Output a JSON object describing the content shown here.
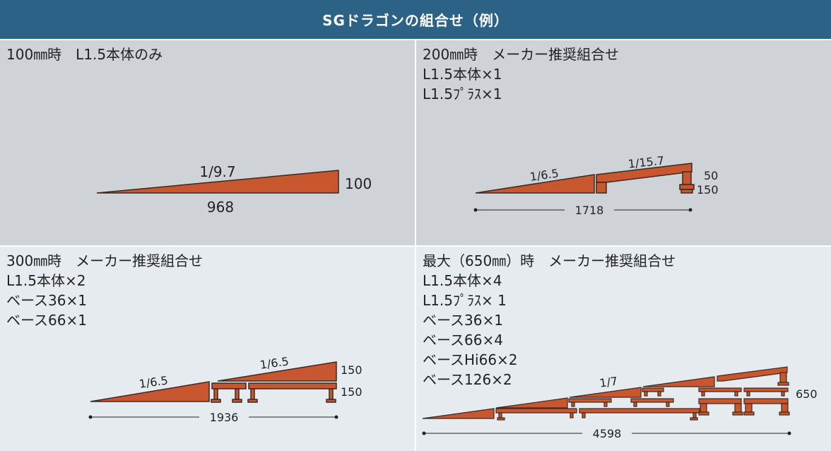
{
  "title": "SGドラゴンの組合せ（例）",
  "colors": {
    "header_bg": "#2d6287",
    "ramp": "#c8562f",
    "panel_dark": "#cfd3d7",
    "panel_light": "#e6ebef"
  },
  "panels": [
    {
      "lines": [
        "100㎜時　L1.5本体のみ"
      ],
      "slope": "1/9.7",
      "length": "968",
      "height": "100"
    },
    {
      "lines": [
        "200㎜時　メーカー推奨組合せ",
        "L1.5本体×1",
        "L1.5ﾌﾟﾗｽ×1"
      ],
      "slope_a": "1/6.5",
      "slope_b": "1/15.7",
      "height_a": "50",
      "height_b": "150",
      "total": "1718"
    },
    {
      "lines": [
        "300㎜時　メーカー推奨組合せ",
        "L1.5本体×2",
        "ベース36×1",
        "ベース66×1"
      ],
      "slope_a": "1/6.5",
      "slope_b": "1/6.5",
      "height_a": "150",
      "height_b": "150",
      "total": "1936"
    },
    {
      "lines": [
        "最大（650㎜）時　メーカー推奨組合せ",
        "L1.5本体×4",
        "L1.5ﾌﾟﾗｽ× 1",
        "ベース36×1",
        "ベース66×4",
        "ベースHi66×2",
        "ベース126×2"
      ],
      "slope": "1/7",
      "height": "650",
      "total": "4598"
    }
  ]
}
